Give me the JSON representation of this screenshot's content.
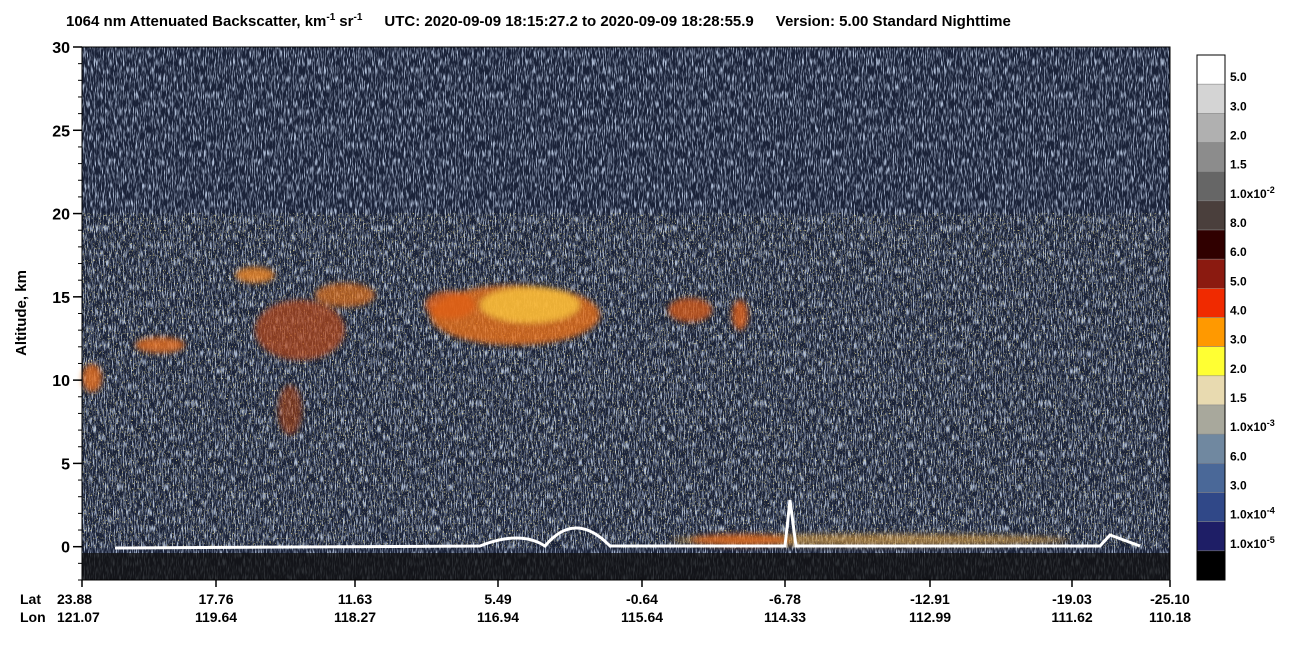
{
  "chart_data": {
    "type": "heatmap",
    "title": {
      "main": "1064 nm Attenuated Backscatter, km",
      "exp1": "-1",
      "unit2": "sr",
      "exp2": "-1",
      "utc": "UTC:  2020-09-09 18:15:27.2  to  2020-09-09 18:28:55.9",
      "version": "Version: 5.00  Standard  Nighttime"
    },
    "y_label": "Altitude, km",
    "ylim": [
      -2,
      30
    ],
    "yticks": [
      0,
      5,
      10,
      15,
      20,
      25,
      30
    ],
    "x_row_labels": [
      "Lat",
      "Lon"
    ],
    "lat": [
      "23.88",
      "17.76",
      "11.63",
      "5.49",
      "-0.64",
      "-6.78",
      "-12.91",
      "-19.03",
      "-25.10"
    ],
    "lon": [
      "121.07",
      "119.64",
      "118.27",
      "116.94",
      "115.64",
      "114.33",
      "112.99",
      "111.62",
      "110.18"
    ],
    "colorbar": {
      "colors": [
        "#ffffff",
        "#d4d4d4",
        "#b0b0b0",
        "#8c8c8c",
        "#666666",
        "#4a3f3c",
        "#300000",
        "#8b1a10",
        "#f02a00",
        "#ff9900",
        "#ffff33",
        "#e8dab0",
        "#a8a89c",
        "#7088a0",
        "#4a6898",
        "#304888",
        "#1e1e66",
        "#000000"
      ],
      "labels": [
        "5.0",
        "3.0",
        "2.0",
        "1.5",
        {
          "text": "1.0x10",
          "sup": "-2"
        },
        "8.0",
        "6.0",
        "5.0",
        "4.0",
        "3.0",
        "2.0",
        "1.5",
        {
          "text": "1.0x10",
          "sup": "-3"
        },
        "6.0",
        "3.0",
        {
          "text": "1.0x10",
          "sup": "-4"
        },
        {
          "text": "1.0x10",
          "sup": "-5"
        }
      ]
    }
  }
}
